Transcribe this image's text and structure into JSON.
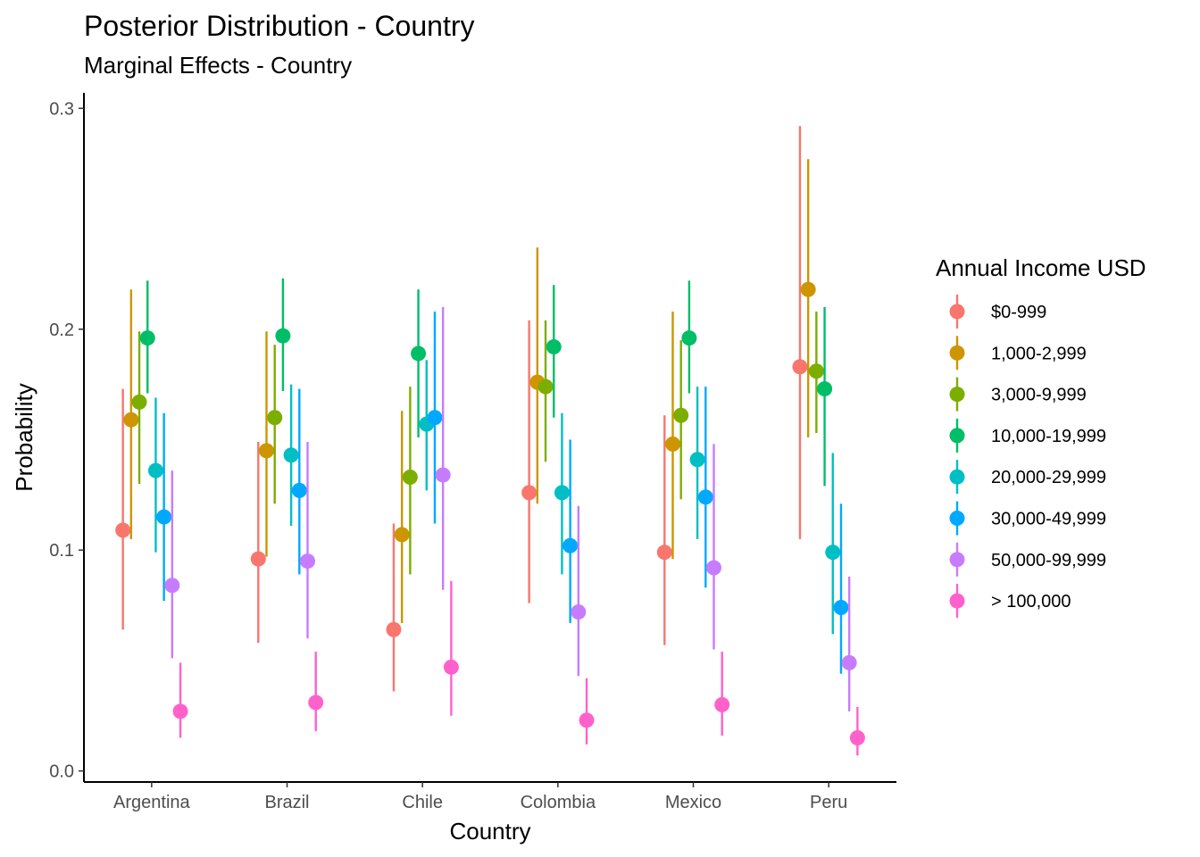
{
  "chart_data": {
    "type": "scatter",
    "title": "Posterior Distribution - Country",
    "subtitle": "Marginal Effects - Country",
    "xlabel": "Country",
    "ylabel": "Probability",
    "ylim": [
      -0.005,
      0.307
    ],
    "yticks": [
      {
        "value": 0.0,
        "label": "0.0"
      },
      {
        "value": 0.1,
        "label": "0.1"
      },
      {
        "value": 0.2,
        "label": "0.2"
      },
      {
        "value": 0.3,
        "label": "0.3"
      }
    ],
    "categories": [
      "Argentina",
      "Brazil",
      "Chile",
      "Colombia",
      "Mexico",
      "Peru"
    ],
    "grid": false,
    "legend": {
      "title": "Annual Income USD",
      "position": "right"
    },
    "series": [
      {
        "name": "$0-999",
        "color": "#F8766D",
        "values": [
          0.109,
          0.096,
          0.064,
          0.126,
          0.099,
          0.183
        ],
        "lower": [
          0.064,
          0.058,
          0.036,
          0.076,
          0.057,
          0.105
        ],
        "upper": [
          0.173,
          0.149,
          0.112,
          0.204,
          0.161,
          0.292
        ]
      },
      {
        "name": "1,000-2,999",
        "color": "#CD9600",
        "values": [
          0.159,
          0.145,
          0.107,
          0.176,
          0.148,
          0.218
        ],
        "lower": [
          0.105,
          0.097,
          0.067,
          0.121,
          0.096,
          0.151
        ],
        "upper": [
          0.218,
          0.199,
          0.163,
          0.237,
          0.208,
          0.277
        ]
      },
      {
        "name": "3,000-9,999",
        "color": "#7CAE00",
        "values": [
          0.167,
          0.16,
          0.133,
          0.174,
          0.161,
          0.181
        ],
        "lower": [
          0.13,
          0.121,
          0.089,
          0.14,
          0.123,
          0.153
        ],
        "upper": [
          0.199,
          0.193,
          0.174,
          0.204,
          0.195,
          0.208
        ]
      },
      {
        "name": "10,000-19,999",
        "color": "#00BE67",
        "values": [
          0.196,
          0.197,
          0.189,
          0.192,
          0.196,
          0.173
        ],
        "lower": [
          0.171,
          0.172,
          0.151,
          0.16,
          0.171,
          0.129
        ],
        "upper": [
          0.222,
          0.223,
          0.218,
          0.22,
          0.222,
          0.21
        ]
      },
      {
        "name": "20,000-29,999",
        "color": "#00BFC4",
        "values": [
          0.136,
          0.143,
          0.157,
          0.126,
          0.141,
          0.099
        ],
        "lower": [
          0.099,
          0.111,
          0.127,
          0.089,
          0.105,
          0.062
        ],
        "upper": [
          0.169,
          0.175,
          0.186,
          0.162,
          0.174,
          0.144
        ]
      },
      {
        "name": "30,000-49,999",
        "color": "#00A9FF",
        "values": [
          0.115,
          0.127,
          0.16,
          0.102,
          0.124,
          0.074
        ],
        "lower": [
          0.077,
          0.089,
          0.112,
          0.067,
          0.083,
          0.044
        ],
        "upper": [
          0.162,
          0.173,
          0.208,
          0.15,
          0.174,
          0.121
        ]
      },
      {
        "name": "50,000-99,999",
        "color": "#C77CFF",
        "values": [
          0.084,
          0.095,
          0.134,
          0.072,
          0.092,
          0.049
        ],
        "lower": [
          0.051,
          0.06,
          0.082,
          0.043,
          0.055,
          0.027
        ],
        "upper": [
          0.136,
          0.149,
          0.21,
          0.12,
          0.148,
          0.088
        ]
      },
      {
        "name": "> 100,000",
        "color": "#FF61CC",
        "values": [
          0.027,
          0.031,
          0.047,
          0.023,
          0.03,
          0.015
        ],
        "lower": [
          0.015,
          0.018,
          0.025,
          0.012,
          0.016,
          0.007
        ],
        "upper": [
          0.049,
          0.054,
          0.086,
          0.042,
          0.054,
          0.029
        ]
      }
    ]
  }
}
